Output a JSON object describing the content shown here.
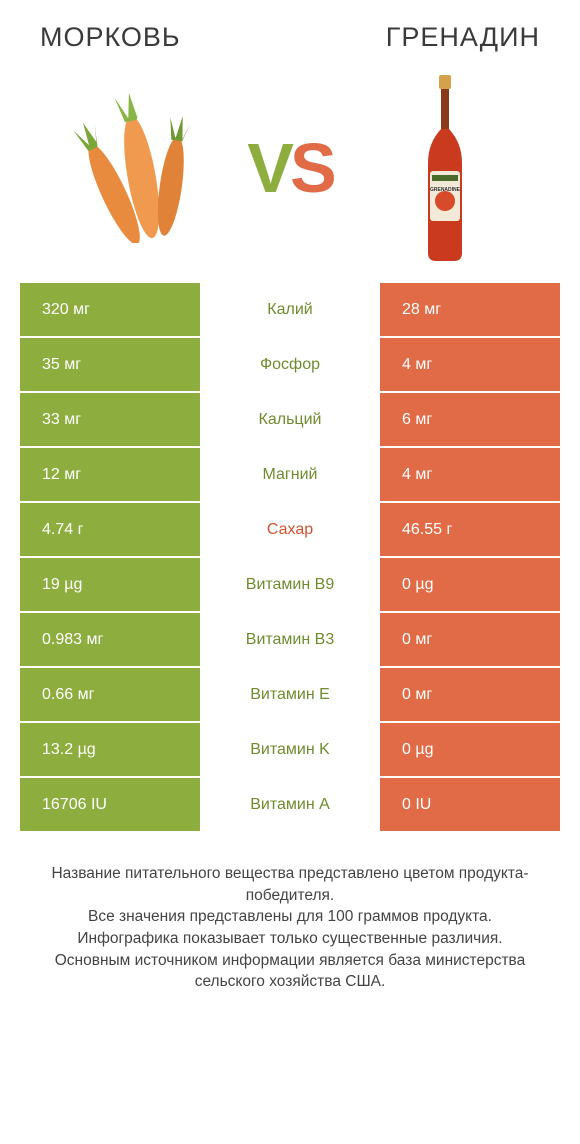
{
  "colors": {
    "green": "#8dad3f",
    "orange": "#e16b47",
    "green_text": "#6f8c2f",
    "orange_text": "#cf5530",
    "carrot_body": "#e88b3e",
    "carrot_leaf": "#7aa63a",
    "bottle_liquid": "#c93a1f",
    "bottle_cap": "#d4a24a",
    "bottle_label": "#f2e9d8",
    "bg": "#ffffff"
  },
  "header": {
    "left": "Морковь",
    "right": "Гренадин"
  },
  "vs": {
    "v": "V",
    "s": "S"
  },
  "rows": [
    {
      "left": "320 мг",
      "mid": "Калий",
      "right": "28 мг",
      "winner": "left"
    },
    {
      "left": "35 мг",
      "mid": "Фосфор",
      "right": "4 мг",
      "winner": "left"
    },
    {
      "left": "33 мг",
      "mid": "Кальций",
      "right": "6 мг",
      "winner": "left"
    },
    {
      "left": "12 мг",
      "mid": "Магний",
      "right": "4 мг",
      "winner": "left"
    },
    {
      "left": "4.74 г",
      "mid": "Сахар",
      "right": "46.55 г",
      "winner": "right"
    },
    {
      "left": "19 µg",
      "mid": "Витамин B9",
      "right": "0 µg",
      "winner": "left"
    },
    {
      "left": "0.983 мг",
      "mid": "Витамин B3",
      "right": "0 мг",
      "winner": "left"
    },
    {
      "left": "0.66 мг",
      "mid": "Витамин E",
      "right": "0 мг",
      "winner": "left"
    },
    {
      "left": "13.2 µg",
      "mid": "Витамин K",
      "right": "0 µg",
      "winner": "left"
    },
    {
      "left": "16706 IU",
      "mid": "Витамин A",
      "right": "0 IU",
      "winner": "left"
    }
  ],
  "footer": {
    "line1": "Название питательного вещества представлено цветом продукта-победителя.",
    "line2": "Все значения представлены для 100 граммов продукта.",
    "line3": "Инфографика показывает только существенные различия.",
    "line4": "Основным источником информации является база министерства сельского хозяйства США."
  }
}
